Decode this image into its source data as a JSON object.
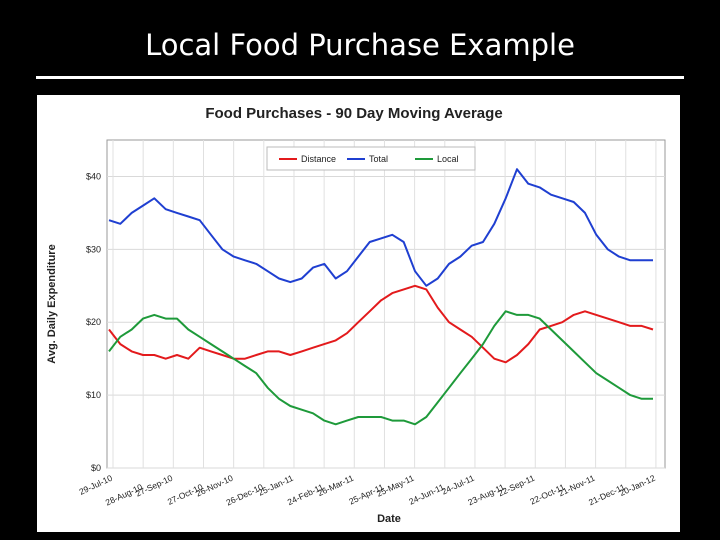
{
  "slide": {
    "title": "Local Food Purchase Example"
  },
  "chart_data": {
    "type": "line",
    "title": "Food Purchases - 90 Day Moving Average",
    "xlabel": "Date",
    "ylabel": "Avg. Daily Expenditure",
    "y_ticks": [
      "$0",
      "$10",
      "$20",
      "$30",
      "$40"
    ],
    "ylim": [
      0,
      45
    ],
    "x_tick_labels": [
      "29-Jul-10",
      "28-Aug-10",
      "27-Sep-10",
      "27-Oct-10",
      "26-Nov-10",
      "26-Dec-10",
      "25-Jan-11",
      "24-Feb-11",
      "26-Mar-11",
      "25-Apr-11",
      "25-May-11",
      "24-Jun-11",
      "24-Jul-11",
      "23-Aug-11",
      "22-Sep-11",
      "22-Oct-11",
      "21-Nov-11",
      "21-Dec-11",
      "20-Jan-12"
    ],
    "grid": true,
    "legend_position": "top",
    "series": [
      {
        "name": "Distance",
        "color": "#e31a1c",
        "values": [
          19,
          17,
          16,
          15.5,
          15.5,
          15,
          15.5,
          15,
          16.5,
          16,
          15.5,
          15,
          15,
          15.5,
          16,
          16,
          15.5,
          16,
          16.5,
          17,
          17.5,
          18.5,
          20,
          21.5,
          23,
          24,
          24.5,
          25,
          24.5,
          22,
          20,
          19,
          18,
          16.5,
          15,
          14.5,
          15.5,
          17,
          19,
          19.5,
          20,
          21,
          21.5,
          21,
          20.5,
          20,
          19.5,
          19.5,
          19
        ]
      },
      {
        "name": "Total",
        "color": "#1f3fd1",
        "values": [
          34,
          33.5,
          35,
          36,
          37,
          35.5,
          35,
          34.5,
          34,
          32,
          30,
          29,
          28.5,
          28,
          27,
          26,
          25.5,
          26,
          27.5,
          28,
          26,
          27,
          29,
          31,
          31.5,
          32,
          31,
          27,
          25,
          26,
          28,
          29,
          30.5,
          31,
          33.5,
          37,
          41,
          39,
          38.5,
          37.5,
          37,
          36.5,
          35,
          32,
          30,
          29,
          28.5,
          28.5,
          28.5
        ]
      },
      {
        "name": "Local",
        "color": "#1e9a3a",
        "values": [
          16,
          18,
          19,
          20.5,
          21,
          20.5,
          20.5,
          19,
          18,
          17,
          16,
          15,
          14,
          13,
          11,
          9.5,
          8.5,
          8,
          7.5,
          6.5,
          6,
          6.5,
          7,
          7,
          7,
          6.5,
          6.5,
          6,
          7,
          9,
          11,
          13,
          15,
          17,
          19.5,
          21.5,
          21,
          21,
          20.5,
          19,
          17.5,
          16,
          14.5,
          13,
          12,
          11,
          10,
          9.5,
          9.5
        ]
      }
    ]
  }
}
